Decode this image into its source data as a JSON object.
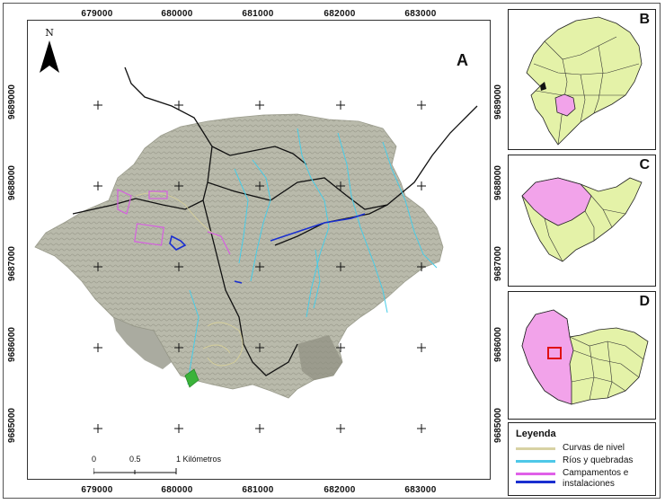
{
  "map_label": "A",
  "north_label": "N",
  "x_ticks": [
    "679000",
    "680000",
    "681000",
    "682000",
    "683000"
  ],
  "y_ticks": [
    "9689000",
    "9688000",
    "9687000",
    "9686000",
    "9685000"
  ],
  "scale": {
    "labels": [
      "0",
      "0.5",
      "1 Kilómetros"
    ]
  },
  "inset_labels": {
    "b": "B",
    "c": "C",
    "d": "D"
  },
  "legend": {
    "title": "Leyenda",
    "items": [
      {
        "label": "Curvas de nivel",
        "color": "#d8d2a4"
      },
      {
        "label": "Ríos y quebradas",
        "color": "#4ec8e8"
      },
      {
        "label": "Campamentos e instalaciones",
        "color": "#e060e8"
      },
      {
        "label": "",
        "color": "#1a2fd0"
      }
    ]
  },
  "colors": {
    "terrain": "#b7b8a9",
    "terrain_dark": "#8e8f80",
    "region_fill": "#e4f2a8",
    "highlight_fill": "#f2a3ea",
    "focus_box": "#e01010"
  }
}
